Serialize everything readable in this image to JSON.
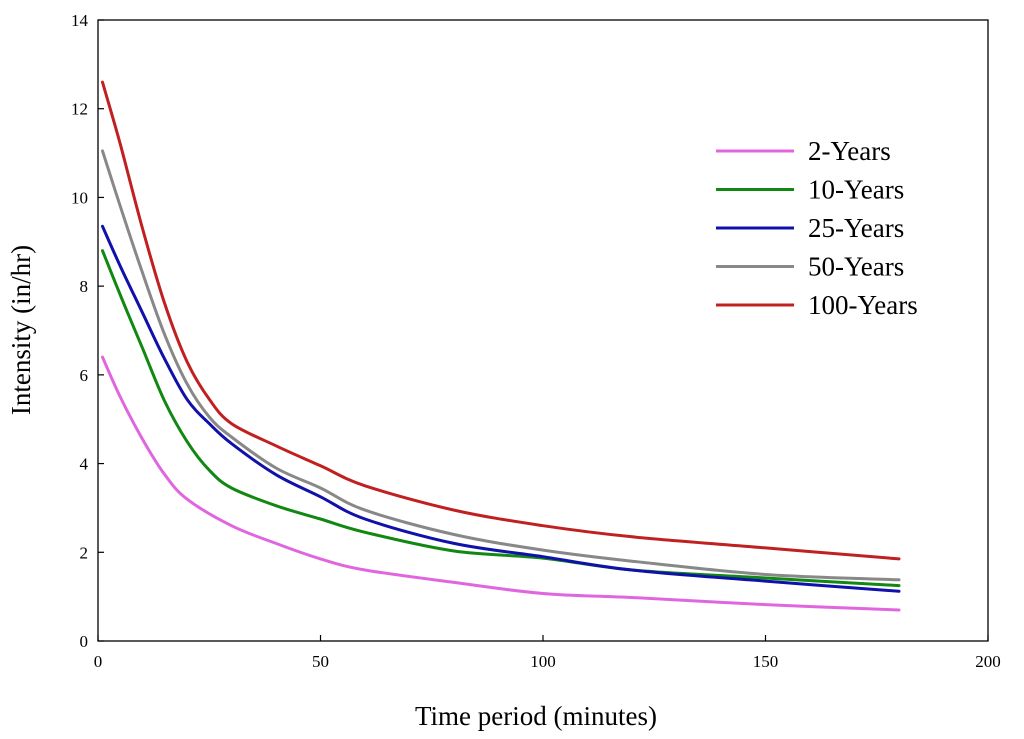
{
  "chart_data": {
    "type": "line",
    "title": "",
    "xlabel": "Time period (minutes)",
    "ylabel": "Intensity (in/hr)",
    "xlim": [
      0,
      200
    ],
    "ylim": [
      0,
      14
    ],
    "xticks": [
      0,
      50,
      100,
      150,
      200
    ],
    "yticks": [
      0,
      2,
      4,
      6,
      8,
      10,
      12,
      14
    ],
    "grid": false,
    "legend_position": "top-right",
    "series": [
      {
        "name": "2-Years",
        "color": "#e066e0",
        "x": [
          1,
          5,
          10,
          15,
          20,
          30,
          40,
          50,
          60,
          80,
          100,
          120,
          150,
          180
        ],
        "y": [
          6.4,
          5.5,
          4.55,
          3.75,
          3.2,
          2.6,
          2.2,
          1.85,
          1.6,
          1.32,
          1.07,
          0.98,
          0.82,
          0.7
        ]
      },
      {
        "name": "10-Years",
        "color": "#118811",
        "x": [
          1,
          5,
          10,
          15,
          20,
          25,
          30,
          40,
          50,
          60,
          80,
          100,
          120,
          150,
          180
        ],
        "y": [
          8.8,
          7.8,
          6.6,
          5.4,
          4.5,
          3.85,
          3.45,
          3.05,
          2.75,
          2.45,
          2.03,
          1.87,
          1.6,
          1.42,
          1.25
        ]
      },
      {
        "name": "25-Years",
        "color": "#1010aa",
        "x": [
          1,
          5,
          10,
          15,
          20,
          25,
          30,
          40,
          50,
          60,
          80,
          100,
          120,
          150,
          180
        ],
        "y": [
          9.35,
          8.45,
          7.4,
          6.35,
          5.45,
          4.9,
          4.45,
          3.75,
          3.25,
          2.75,
          2.2,
          1.9,
          1.6,
          1.35,
          1.12
        ]
      },
      {
        "name": "50-Years",
        "color": "#888888",
        "x": [
          1,
          5,
          10,
          15,
          20,
          25,
          30,
          40,
          50,
          60,
          80,
          100,
          120,
          150,
          180
        ],
        "y": [
          11.05,
          9.8,
          8.3,
          6.9,
          5.8,
          5.05,
          4.6,
          3.9,
          3.45,
          2.95,
          2.4,
          2.05,
          1.8,
          1.5,
          1.38
        ]
      },
      {
        "name": "100-Years",
        "color": "#c02020",
        "x": [
          1,
          5,
          10,
          15,
          20,
          25,
          30,
          40,
          50,
          60,
          80,
          100,
          120,
          150,
          180
        ],
        "y": [
          12.6,
          11.2,
          9.3,
          7.6,
          6.3,
          5.45,
          4.9,
          4.4,
          3.95,
          3.5,
          2.95,
          2.6,
          2.35,
          2.1,
          1.85
        ]
      }
    ]
  }
}
